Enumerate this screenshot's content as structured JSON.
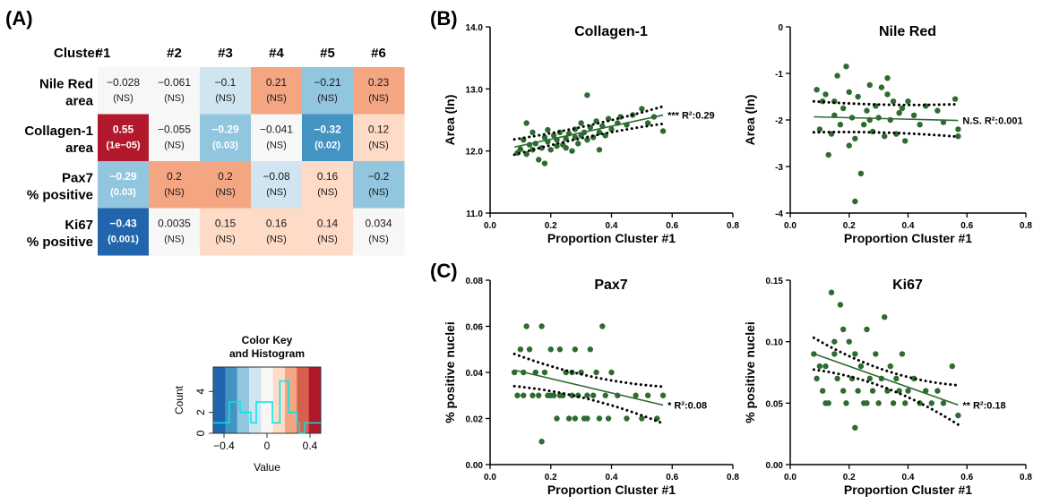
{
  "panel_labels": {
    "a": "(A)",
    "b": "(B)",
    "c": "(C)"
  },
  "heatmap": {
    "corner": "Cluster",
    "columns": [
      "#1",
      "#2",
      "#3",
      "#4",
      "#5",
      "#6"
    ],
    "rows": [
      {
        "l1": "Nile Red",
        "l2": "area",
        "vals": [
          "−0.028",
          "−0.061",
          "−0.1",
          "0.21",
          "−0.21",
          "0.23"
        ],
        "nums": [
          -0.028,
          -0.061,
          -0.1,
          0.21,
          -0.21,
          0.23
        ],
        "sig": [
          "(NS)",
          "(NS)",
          "(NS)",
          "(NS)",
          "(NS)",
          "(NS)"
        ]
      },
      {
        "l1": "Collagen-1",
        "l2": "area",
        "vals": [
          "0.55",
          "−0.055",
          "−0.29",
          "−0.041",
          "−0.32",
          "0.12"
        ],
        "nums": [
          0.55,
          -0.055,
          -0.29,
          -0.041,
          -0.32,
          0.12
        ],
        "sig": [
          "(1e−05)",
          "(NS)",
          "(0.03)",
          "(NS)",
          "(0.02)",
          "(NS)"
        ]
      },
      {
        "l1": "Pax7",
        "l2": "% positive",
        "vals": [
          "−0.29",
          "0.2",
          "0.2",
          "−0.08",
          "0.16",
          "−0.2"
        ],
        "nums": [
          -0.29,
          0.2,
          0.2,
          -0.08,
          0.16,
          -0.2
        ],
        "sig": [
          "(0.03)",
          "(NS)",
          "(NS)",
          "(NS)",
          "(NS)",
          "(NS)"
        ]
      },
      {
        "l1": "Ki67",
        "l2": "% positive",
        "vals": [
          "−0.43",
          "0.0035",
          "0.15",
          "0.16",
          "0.14",
          "0.034"
        ],
        "nums": [
          -0.43,
          0.0035,
          0.15,
          0.16,
          0.14,
          0.034
        ],
        "sig": [
          "(0.001)",
          "(NS)",
          "(NS)",
          "(NS)",
          "(NS)",
          "(NS)"
        ]
      }
    ]
  },
  "color_key": {
    "title1": "Color Key",
    "title2": "and Histogram",
    "ylabel": "Count",
    "xlabel": "Value",
    "xticks": [
      "−0.4",
      "0",
      "0.4"
    ],
    "yticks": [
      "0",
      "2",
      "4"
    ],
    "colors": [
      "#2166ac",
      "#4393c3",
      "#92c5de",
      "#d1e5f0",
      "#f7f7f7",
      "#fddbc7",
      "#f4a582",
      "#d6604d",
      "#b2182b"
    ],
    "histogram_color": "#00e5ee"
  },
  "chart_data": [
    {
      "type": "scatter",
      "title": "Collagen-1",
      "xlabel": "Proportion Cluster #1",
      "ylabel": "Area (ln)",
      "xlim": [
        0.0,
        0.8
      ],
      "ylim": [
        11.0,
        14.0
      ],
      "xticks": [
        "0.0",
        "0.2",
        "0.4",
        "0.6",
        "0.8"
      ],
      "yticks": [
        "11.0",
        "12.0",
        "13.0",
        "14.0"
      ],
      "annotation": "*** R²:0.29",
      "fit": {
        "slope": 1.05,
        "intercept": 11.98
      },
      "ci_half_width": [
        0.09,
        0.14
      ],
      "points": [
        [
          0.09,
          11.97
        ],
        [
          0.1,
          12.03
        ],
        [
          0.11,
          12.18
        ],
        [
          0.12,
          11.95
        ],
        [
          0.13,
          12.1
        ],
        [
          0.14,
          12.3
        ],
        [
          0.14,
          12.02
        ],
        [
          0.15,
          12.12
        ],
        [
          0.16,
          11.86
        ],
        [
          0.17,
          12.05
        ],
        [
          0.18,
          12.22
        ],
        [
          0.18,
          11.8
        ],
        [
          0.19,
          12.15
        ],
        [
          0.2,
          12.02
        ],
        [
          0.21,
          12.25
        ],
        [
          0.22,
          12.18
        ],
        [
          0.22,
          12.08
        ],
        [
          0.23,
          12.3
        ],
        [
          0.24,
          12.1
        ],
        [
          0.25,
          12.2
        ],
        [
          0.26,
          12.28
        ],
        [
          0.27,
          12.0
        ],
        [
          0.28,
          12.35
        ],
        [
          0.28,
          12.22
        ],
        [
          0.29,
          12.12
        ],
        [
          0.3,
          12.45
        ],
        [
          0.31,
          12.3
        ],
        [
          0.32,
          12.9
        ],
        [
          0.32,
          12.18
        ],
        [
          0.33,
          12.38
        ],
        [
          0.34,
          12.22
        ],
        [
          0.35,
          12.48
        ],
        [
          0.36,
          12.3
        ],
        [
          0.37,
          12.4
        ],
        [
          0.38,
          12.25
        ],
        [
          0.39,
          12.52
        ],
        [
          0.4,
          12.35
        ],
        [
          0.42,
          12.45
        ],
        [
          0.43,
          12.55
        ],
        [
          0.45,
          12.42
        ],
        [
          0.47,
          12.58
        ],
        [
          0.5,
          12.68
        ],
        [
          0.52,
          12.45
        ],
        [
          0.54,
          12.55
        ],
        [
          0.57,
          12.32
        ],
        [
          0.36,
          12.02
        ],
        [
          0.25,
          12.05
        ],
        [
          0.19,
          12.34
        ],
        [
          0.12,
          12.45
        ],
        [
          0.3,
          12.25
        ]
      ]
    },
    {
      "type": "scatter",
      "title": "Nile Red",
      "xlabel": "Proportion Cluster #1",
      "ylabel": "Area (ln)",
      "xlim": [
        0.0,
        0.8
      ],
      "ylim": [
        -4,
        0
      ],
      "xticks": [
        "0.0",
        "0.2",
        "0.4",
        "0.6",
        "0.8"
      ],
      "yticks": [
        "-4",
        "-3",
        "-2",
        "-1",
        "0"
      ],
      "annotation": "N.S. R²:0.001",
      "fit": {
        "slope": -0.16,
        "intercept": -1.92
      },
      "ci_half_width": [
        0.3,
        0.35
      ],
      "points": [
        [
          0.09,
          -1.35
        ],
        [
          0.1,
          -2.2
        ],
        [
          0.11,
          -1.6
        ],
        [
          0.12,
          -1.45
        ],
        [
          0.13,
          -2.75
        ],
        [
          0.14,
          -2.3
        ],
        [
          0.15,
          -1.9
        ],
        [
          0.16,
          -1.05
        ],
        [
          0.17,
          -2.1
        ],
        [
          0.18,
          -1.75
        ],
        [
          0.19,
          -0.85
        ],
        [
          0.2,
          -1.4
        ],
        [
          0.2,
          -2.55
        ],
        [
          0.21,
          -1.95
        ],
        [
          0.22,
          -2.4
        ],
        [
          0.22,
          -3.75
        ],
        [
          0.23,
          -1.5
        ],
        [
          0.24,
          -3.15
        ],
        [
          0.25,
          -2.1
        ],
        [
          0.26,
          -1.8
        ],
        [
          0.27,
          -1.25
        ],
        [
          0.28,
          -2.25
        ],
        [
          0.29,
          -1.7
        ],
        [
          0.3,
          -1.95
        ],
        [
          0.31,
          -1.3
        ],
        [
          0.32,
          -2.35
        ],
        [
          0.33,
          -1.1
        ],
        [
          0.34,
          -2.0
        ],
        [
          0.35,
          -1.6
        ],
        [
          0.36,
          -2.3
        ],
        [
          0.37,
          -1.85
        ],
        [
          0.38,
          -1.75
        ],
        [
          0.39,
          -2.45
        ],
        [
          0.4,
          -1.6
        ],
        [
          0.42,
          -1.9
        ],
        [
          0.44,
          -2.1
        ],
        [
          0.46,
          -1.7
        ],
        [
          0.5,
          -1.8
        ],
        [
          0.52,
          -2.05
        ],
        [
          0.56,
          -1.55
        ],
        [
          0.57,
          -2.35
        ],
        [
          0.57,
          -2.2
        ],
        [
          0.15,
          -1.6
        ],
        [
          0.27,
          -2.0
        ],
        [
          0.33,
          -1.45
        ]
      ]
    },
    {
      "type": "scatter",
      "title": "Pax7",
      "xlabel": "Proportion Cluster #1",
      "ylabel": "% positive nuclei",
      "xlim": [
        0.0,
        0.8
      ],
      "ylim": [
        0.0,
        0.08
      ],
      "xticks": [
        "0.0",
        "0.2",
        "0.4",
        "0.6",
        "0.8"
      ],
      "yticks": [
        "0.00",
        "0.02",
        "0.04",
        "0.06",
        "0.08"
      ],
      "annotation": "* R²:0.08",
      "fit": {
        "slope": -0.031,
        "intercept": 0.0435
      },
      "ci_half_width": [
        0.005,
        0.008
      ],
      "points": [
        [
          0.08,
          0.04
        ],
        [
          0.09,
          0.03
        ],
        [
          0.1,
          0.05
        ],
        [
          0.11,
          0.04
        ],
        [
          0.12,
          0.06
        ],
        [
          0.13,
          0.05
        ],
        [
          0.14,
          0.03
        ],
        [
          0.15,
          0.04
        ],
        [
          0.16,
          0.03
        ],
        [
          0.17,
          0.06
        ],
        [
          0.17,
          0.01
        ],
        [
          0.18,
          0.04
        ],
        [
          0.19,
          0.03
        ],
        [
          0.2,
          0.05
        ],
        [
          0.21,
          0.03
        ],
        [
          0.22,
          0.02
        ],
        [
          0.23,
          0.05
        ],
        [
          0.24,
          0.03
        ],
        [
          0.25,
          0.04
        ],
        [
          0.26,
          0.02
        ],
        [
          0.27,
          0.03
        ],
        [
          0.28,
          0.05
        ],
        [
          0.29,
          0.03
        ],
        [
          0.3,
          0.04
        ],
        [
          0.31,
          0.02
        ],
        [
          0.32,
          0.03
        ],
        [
          0.33,
          0.05
        ],
        [
          0.34,
          0.03
        ],
        [
          0.35,
          0.04
        ],
        [
          0.36,
          0.02
        ],
        [
          0.37,
          0.06
        ],
        [
          0.38,
          0.03
        ],
        [
          0.39,
          0.02
        ],
        [
          0.4,
          0.04
        ],
        [
          0.42,
          0.03
        ],
        [
          0.45,
          0.02
        ],
        [
          0.48,
          0.03
        ],
        [
          0.5,
          0.02
        ],
        [
          0.52,
          0.03
        ],
        [
          0.55,
          0.02
        ],
        [
          0.57,
          0.03
        ],
        [
          0.32,
          0.02
        ],
        [
          0.28,
          0.02
        ],
        [
          0.2,
          0.03
        ],
        [
          0.23,
          0.03
        ],
        [
          0.27,
          0.04
        ],
        [
          0.11,
          0.03
        ]
      ]
    },
    {
      "type": "scatter",
      "title": "Ki67",
      "xlabel": "Proportion Cluster #1",
      "ylabel": "% positive nuclei",
      "xlim": [
        0.0,
        0.8
      ],
      "ylim": [
        0.0,
        0.15
      ],
      "xticks": [
        "0.0",
        "0.2",
        "0.4",
        "0.6",
        "0.8"
      ],
      "yticks": [
        "0.00",
        "0.05",
        "0.10",
        "0.15"
      ],
      "annotation": "** R²:0.18",
      "fit": {
        "slope": -0.085,
        "intercept": 0.097
      },
      "ci_half_width": [
        0.007,
        0.016
      ],
      "points": [
        [
          0.08,
          0.09
        ],
        [
          0.09,
          0.07
        ],
        [
          0.1,
          0.08
        ],
        [
          0.11,
          0.06
        ],
        [
          0.12,
          0.08
        ],
        [
          0.13,
          0.05
        ],
        [
          0.14,
          0.14
        ],
        [
          0.15,
          0.09
        ],
        [
          0.16,
          0.07
        ],
        [
          0.17,
          0.13
        ],
        [
          0.18,
          0.06
        ],
        [
          0.18,
          0.11
        ],
        [
          0.19,
          0.05
        ],
        [
          0.2,
          0.1
        ],
        [
          0.21,
          0.07
        ],
        [
          0.22,
          0.03
        ],
        [
          0.22,
          0.09
        ],
        [
          0.23,
          0.06
        ],
        [
          0.24,
          0.08
        ],
        [
          0.25,
          0.05
        ],
        [
          0.26,
          0.11
        ],
        [
          0.27,
          0.07
        ],
        [
          0.28,
          0.06
        ],
        [
          0.29,
          0.09
        ],
        [
          0.3,
          0.05
        ],
        [
          0.31,
          0.07
        ],
        [
          0.32,
          0.12
        ],
        [
          0.33,
          0.06
        ],
        [
          0.34,
          0.08
        ],
        [
          0.35,
          0.05
        ],
        [
          0.36,
          0.07
        ],
        [
          0.37,
          0.06
        ],
        [
          0.38,
          0.09
        ],
        [
          0.39,
          0.05
        ],
        [
          0.4,
          0.06
        ],
        [
          0.42,
          0.07
        ],
        [
          0.44,
          0.05
        ],
        [
          0.46,
          0.06
        ],
        [
          0.48,
          0.05
        ],
        [
          0.5,
          0.06
        ],
        [
          0.52,
          0.05
        ],
        [
          0.55,
          0.08
        ],
        [
          0.57,
          0.04
        ],
        [
          0.15,
          0.1
        ],
        [
          0.26,
          0.05
        ],
        [
          0.12,
          0.05
        ]
      ]
    }
  ]
}
